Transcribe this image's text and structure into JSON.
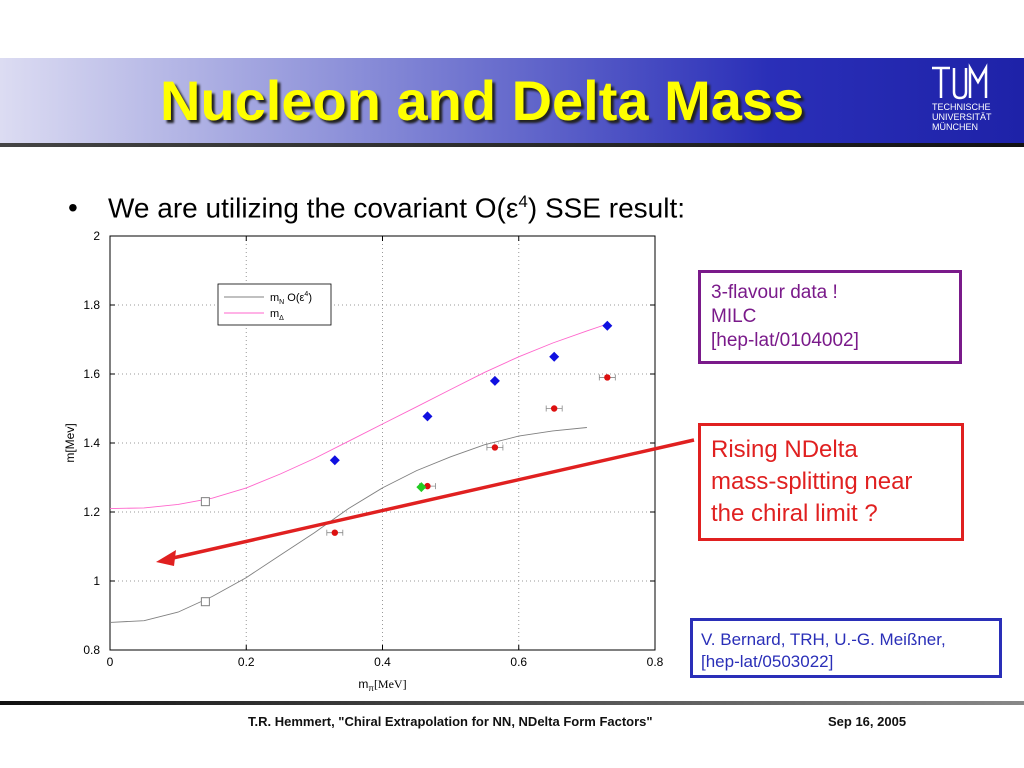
{
  "slide": {
    "title": "Nucleon and Delta Mass",
    "logo": {
      "line1": "TECHNISCHE",
      "line2": "UNIVERSITÄT",
      "line3": "MÜNCHEN"
    },
    "bullet": {
      "marker": "•",
      "text_pre": "We are utilizing the covariant O(ε",
      "superscript": "4",
      "text_post": ") SSE result:"
    },
    "box_flavour": {
      "line1": "3-flavour data !",
      "line2": "MILC",
      "line3": "[hep-lat/0104002]"
    },
    "box_rising": {
      "line1": "Rising NDelta",
      "line2": "mass-splitting near",
      "line3": "the chiral limit ?"
    },
    "box_ref": {
      "line1": "V. Bernard, TRH, U.-G. Meißner,",
      "line2": "[hep-lat/0503022]"
    },
    "footer": {
      "left": "T.R. Hemmert, \"Chiral Extrapolation for NN, NDelta Form Factors\"",
      "right": "Sep 16, 2005"
    },
    "colors": {
      "title": "#ffff00",
      "flavour_box": "#7a1a8a",
      "rising_box": "#e02020",
      "ref_box": "#2a2fb8",
      "arrow": "#e02020"
    }
  },
  "chart_data": {
    "type": "scatter",
    "xlabel_main": "m",
    "xlabel_sub": "π",
    "xlabel_unit": "[MeV]",
    "ylabel": "m[Mev]",
    "xlim": [
      0,
      0.8
    ],
    "ylim": [
      0.8,
      2
    ],
    "xticks": [
      "0",
      "0.2",
      "0.4",
      "0.6",
      "0.8"
    ],
    "yticks": [
      "0.8",
      "1",
      "1.2",
      "1.4",
      "1.6",
      "1.8",
      "2"
    ],
    "legend": {
      "placement": "top-left",
      "entries": [
        {
          "main": "m",
          "sub": "N",
          "rest": " O(ε",
          "sup": "4",
          "close": ")",
          "color": "#808080"
        },
        {
          "main": "m",
          "sub": "Δ",
          "rest": "",
          "sup": "",
          "close": "",
          "color": "#ff66cc"
        }
      ]
    },
    "series": [
      {
        "kind": "line",
        "color": "#808080",
        "points": [
          [
            0,
            0.88
          ],
          [
            0.05,
            0.885
          ],
          [
            0.1,
            0.91
          ],
          [
            0.15,
            0.955
          ],
          [
            0.2,
            1.01
          ],
          [
            0.25,
            1.075
          ],
          [
            0.3,
            1.14
          ],
          [
            0.35,
            1.21
          ],
          [
            0.4,
            1.27
          ],
          [
            0.45,
            1.32
          ],
          [
            0.5,
            1.36
          ],
          [
            0.55,
            1.395
          ],
          [
            0.6,
            1.42
          ],
          [
            0.65,
            1.435
          ],
          [
            0.7,
            1.445
          ]
        ]
      },
      {
        "kind": "line",
        "color": "#ff66cc",
        "points": [
          [
            0,
            1.21
          ],
          [
            0.05,
            1.212
          ],
          [
            0.1,
            1.222
          ],
          [
            0.15,
            1.24
          ],
          [
            0.2,
            1.27
          ],
          [
            0.25,
            1.31
          ],
          [
            0.3,
            1.355
          ],
          [
            0.35,
            1.405
          ],
          [
            0.4,
            1.455
          ],
          [
            0.45,
            1.505
          ],
          [
            0.5,
            1.555
          ],
          [
            0.55,
            1.605
          ],
          [
            0.6,
            1.65
          ],
          [
            0.65,
            1.69
          ],
          [
            0.7,
            1.725
          ],
          [
            0.73,
            1.745
          ]
        ]
      },
      {
        "kind": "open-square",
        "color": "#808080",
        "points": [
          [
            0.14,
            0.94
          ],
          [
            0.14,
            1.23
          ]
        ]
      },
      {
        "kind": "diamond",
        "color": "#1010e0",
        "points": [
          [
            0.33,
            1.35
          ],
          [
            0.466,
            1.477
          ],
          [
            0.565,
            1.58
          ],
          [
            0.652,
            1.65
          ],
          [
            0.73,
            1.74
          ]
        ]
      },
      {
        "kind": "circle",
        "color": "#dd1010",
        "points": [
          [
            0.33,
            1.14
          ],
          [
            0.466,
            1.275
          ],
          [
            0.565,
            1.387
          ],
          [
            0.652,
            1.5
          ],
          [
            0.73,
            1.59
          ]
        ]
      },
      {
        "kind": "diamond",
        "color": "#22cc22",
        "points": [
          [
            0.457,
            1.272
          ]
        ]
      }
    ]
  }
}
